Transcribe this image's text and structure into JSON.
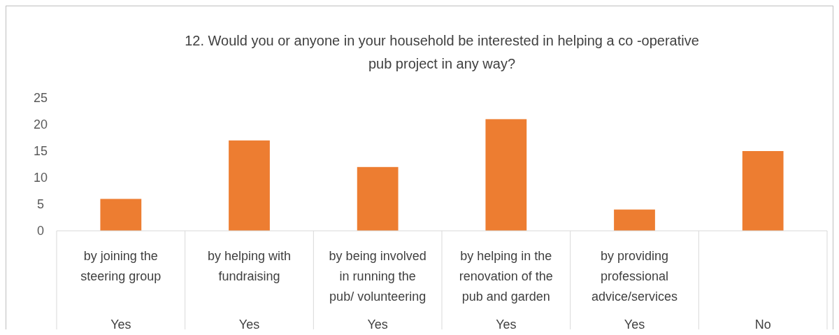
{
  "chart_data": {
    "type": "bar",
    "title": "12. Would you or anyone in your household be interested in helping a co -operative pub project in any way?",
    "categories": [
      "by joining the steering group",
      "by helping with fundraising",
      "by being involved in running the pub/ volunteering",
      "by helping in the renovation of the pub and garden",
      "by providing professional advice/services",
      null
    ],
    "values": [
      6,
      17,
      12,
      21,
      4,
      15
    ],
    "color": "#ed7d31",
    "ylim": [
      0,
      25
    ],
    "yticks": [
      0,
      5,
      10,
      15,
      20,
      25
    ],
    "grid": false,
    "annotations": [
      "Yes",
      "Yes",
      "Yes",
      "Yes",
      "Yes",
      "No"
    ]
  }
}
